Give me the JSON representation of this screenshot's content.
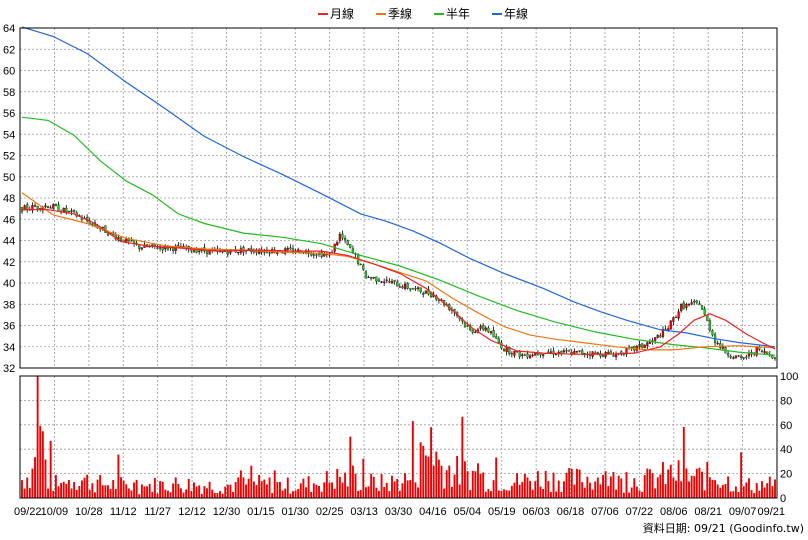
{
  "chart_data": {
    "type": "candlestick",
    "legend": [
      {
        "name": "月線",
        "color": "#ee2222"
      },
      {
        "name": "季線",
        "color": "#ee7711"
      },
      {
        "name": "半年",
        "color": "#22bb22"
      },
      {
        "name": "年線",
        "color": "#2266dd"
      }
    ],
    "price_axis": {
      "min": 32,
      "max": 64,
      "ticks": [
        64,
        62,
        60,
        58,
        56,
        54,
        52,
        50,
        48,
        46,
        44,
        42,
        40,
        38,
        36,
        34,
        32
      ]
    },
    "volume_axis": {
      "min": 0,
      "max": 100,
      "ticks": [
        100,
        80,
        60,
        40,
        20,
        0
      ]
    },
    "x_ticks": [
      "09/22",
      "10/09",
      "10/28",
      "11/12",
      "11/27",
      "12/12",
      "12/30",
      "01/15",
      "01/30",
      "02/25",
      "03/13",
      "03/30",
      "04/16",
      "05/04",
      "05/19",
      "06/03",
      "06/18",
      "07/06",
      "07/22",
      "08/06",
      "08/21",
      "09/07",
      "09/21"
    ],
    "grid": true,
    "footer": "資料日期: 09/21  (Goodinfo.tw)",
    "colors": {
      "up": "#ee0000",
      "down": "#22cc22",
      "volume": "#ee0000",
      "grid": "#999999",
      "axis": "#000000"
    },
    "price_anchors": [
      [
        0,
        47.0
      ],
      [
        10,
        47.3
      ],
      [
        20,
        46.5
      ],
      [
        35,
        44.5
      ],
      [
        45,
        43.4
      ],
      [
        60,
        43.3
      ],
      [
        75,
        42.9
      ],
      [
        85,
        43.1
      ],
      [
        108,
        43.0
      ],
      [
        118,
        42.6
      ],
      [
        122,
        44.5
      ],
      [
        128,
        42.5
      ],
      [
        132,
        40.6
      ],
      [
        138,
        40.3
      ],
      [
        145,
        39.8
      ],
      [
        158,
        38.9
      ],
      [
        166,
        37.3
      ],
      [
        172,
        35.5
      ],
      [
        178,
        35.8
      ],
      [
        185,
        33.8
      ],
      [
        192,
        33.2
      ],
      [
        200,
        33.5
      ],
      [
        215,
        33.4
      ],
      [
        228,
        33.3
      ],
      [
        235,
        33.8
      ],
      [
        242,
        34.5
      ],
      [
        248,
        35.8
      ],
      [
        253,
        37.8
      ],
      [
        260,
        38.1
      ],
      [
        266,
        34.6
      ],
      [
        270,
        33.5
      ],
      [
        276,
        32.8
      ],
      [
        282,
        33.7
      ],
      [
        289,
        33.1
      ]
    ],
    "volume_anchors": [
      [
        0,
        18
      ],
      [
        4,
        26
      ],
      [
        6,
        90
      ],
      [
        10,
        17
      ],
      [
        15,
        12
      ],
      [
        20,
        20
      ],
      [
        30,
        14
      ],
      [
        45,
        12
      ],
      [
        60,
        14
      ],
      [
        75,
        12
      ],
      [
        90,
        14
      ],
      [
        105,
        12
      ],
      [
        115,
        16
      ],
      [
        122,
        20
      ],
      [
        130,
        16
      ],
      [
        140,
        14
      ],
      [
        150,
        20
      ],
      [
        155,
        40
      ],
      [
        158,
        50
      ],
      [
        160,
        34
      ],
      [
        165,
        26
      ],
      [
        172,
        24
      ],
      [
        180,
        18
      ],
      [
        190,
        16
      ],
      [
        200,
        20
      ],
      [
        210,
        18
      ],
      [
        222,
        20
      ],
      [
        230,
        16
      ],
      [
        240,
        18
      ],
      [
        250,
        24
      ],
      [
        258,
        20
      ],
      [
        266,
        22
      ],
      [
        272,
        16
      ],
      [
        280,
        12
      ],
      [
        289,
        14
      ]
    ],
    "ma_lines": [
      {
        "name": "年線",
        "color": "#2266dd",
        "points": [
          [
            0,
            64.1
          ],
          [
            12,
            63.2
          ],
          [
            25,
            61.6
          ],
          [
            40,
            58.9
          ],
          [
            55,
            56.4
          ],
          [
            70,
            53.8
          ],
          [
            85,
            51.9
          ],
          [
            100,
            50.2
          ],
          [
            115,
            48.4
          ],
          [
            130,
            46.5
          ],
          [
            140,
            45.8
          ],
          [
            150,
            44.9
          ],
          [
            160,
            43.8
          ],
          [
            172,
            42.3
          ],
          [
            185,
            40.9
          ],
          [
            200,
            39.5
          ],
          [
            212,
            38.2
          ],
          [
            222,
            37.3
          ],
          [
            232,
            36.5
          ],
          [
            245,
            35.6
          ],
          [
            255,
            35.3
          ],
          [
            265,
            34.8
          ],
          [
            275,
            34.4
          ],
          [
            289,
            34.0
          ]
        ]
      },
      {
        "name": "半年",
        "color": "#22bb22",
        "points": [
          [
            0,
            55.6
          ],
          [
            10,
            55.3
          ],
          [
            20,
            53.9
          ],
          [
            30,
            51.5
          ],
          [
            40,
            49.6
          ],
          [
            50,
            48.3
          ],
          [
            60,
            46.5
          ],
          [
            70,
            45.6
          ],
          [
            85,
            44.7
          ],
          [
            100,
            44.3
          ],
          [
            115,
            43.7
          ],
          [
            130,
            42.6
          ],
          [
            145,
            41.6
          ],
          [
            160,
            40.3
          ],
          [
            175,
            38.8
          ],
          [
            190,
            37.4
          ],
          [
            205,
            36.3
          ],
          [
            220,
            35.4
          ],
          [
            235,
            34.7
          ],
          [
            250,
            34.2
          ],
          [
            262,
            33.9
          ],
          [
            275,
            33.5
          ],
          [
            289,
            33.2
          ]
        ]
      },
      {
        "name": "季線",
        "color": "#ee7711",
        "points": [
          [
            0,
            48.5
          ],
          [
            12,
            46.4
          ],
          [
            25,
            45.6
          ],
          [
            40,
            44.2
          ],
          [
            55,
            43.5
          ],
          [
            70,
            43.2
          ],
          [
            85,
            43.1
          ],
          [
            100,
            42.9
          ],
          [
            115,
            42.8
          ],
          [
            125,
            42.5
          ],
          [
            135,
            41.8
          ],
          [
            145,
            41.0
          ],
          [
            155,
            40.2
          ],
          [
            165,
            38.6
          ],
          [
            175,
            37.2
          ],
          [
            185,
            35.9
          ],
          [
            195,
            35.1
          ],
          [
            205,
            34.7
          ],
          [
            215,
            34.4
          ],
          [
            228,
            34.0
          ],
          [
            240,
            33.7
          ],
          [
            250,
            33.7
          ],
          [
            262,
            34.0
          ],
          [
            275,
            34.1
          ],
          [
            289,
            33.9
          ]
        ]
      },
      {
        "name": "月線",
        "color": "#ee2222",
        "points": [
          [
            0,
            46.9
          ],
          [
            10,
            46.9
          ],
          [
            20,
            46.5
          ],
          [
            28,
            45.6
          ],
          [
            38,
            43.9
          ],
          [
            48,
            43.5
          ],
          [
            60,
            43.3
          ],
          [
            75,
            43.0
          ],
          [
            90,
            43.1
          ],
          [
            105,
            43.0
          ],
          [
            115,
            43.0
          ],
          [
            125,
            42.6
          ],
          [
            135,
            41.8
          ],
          [
            145,
            40.9
          ],
          [
            155,
            39.5
          ],
          [
            165,
            37.5
          ],
          [
            172,
            35.9
          ],
          [
            180,
            34.6
          ],
          [
            190,
            33.6
          ],
          [
            200,
            33.4
          ],
          [
            212,
            33.3
          ],
          [
            225,
            33.3
          ],
          [
            235,
            33.4
          ],
          [
            245,
            34.0
          ],
          [
            252,
            35.2
          ],
          [
            258,
            36.5
          ],
          [
            264,
            37.1
          ],
          [
            270,
            36.5
          ],
          [
            278,
            35.2
          ],
          [
            284,
            34.4
          ],
          [
            289,
            33.8
          ]
        ]
      }
    ]
  }
}
